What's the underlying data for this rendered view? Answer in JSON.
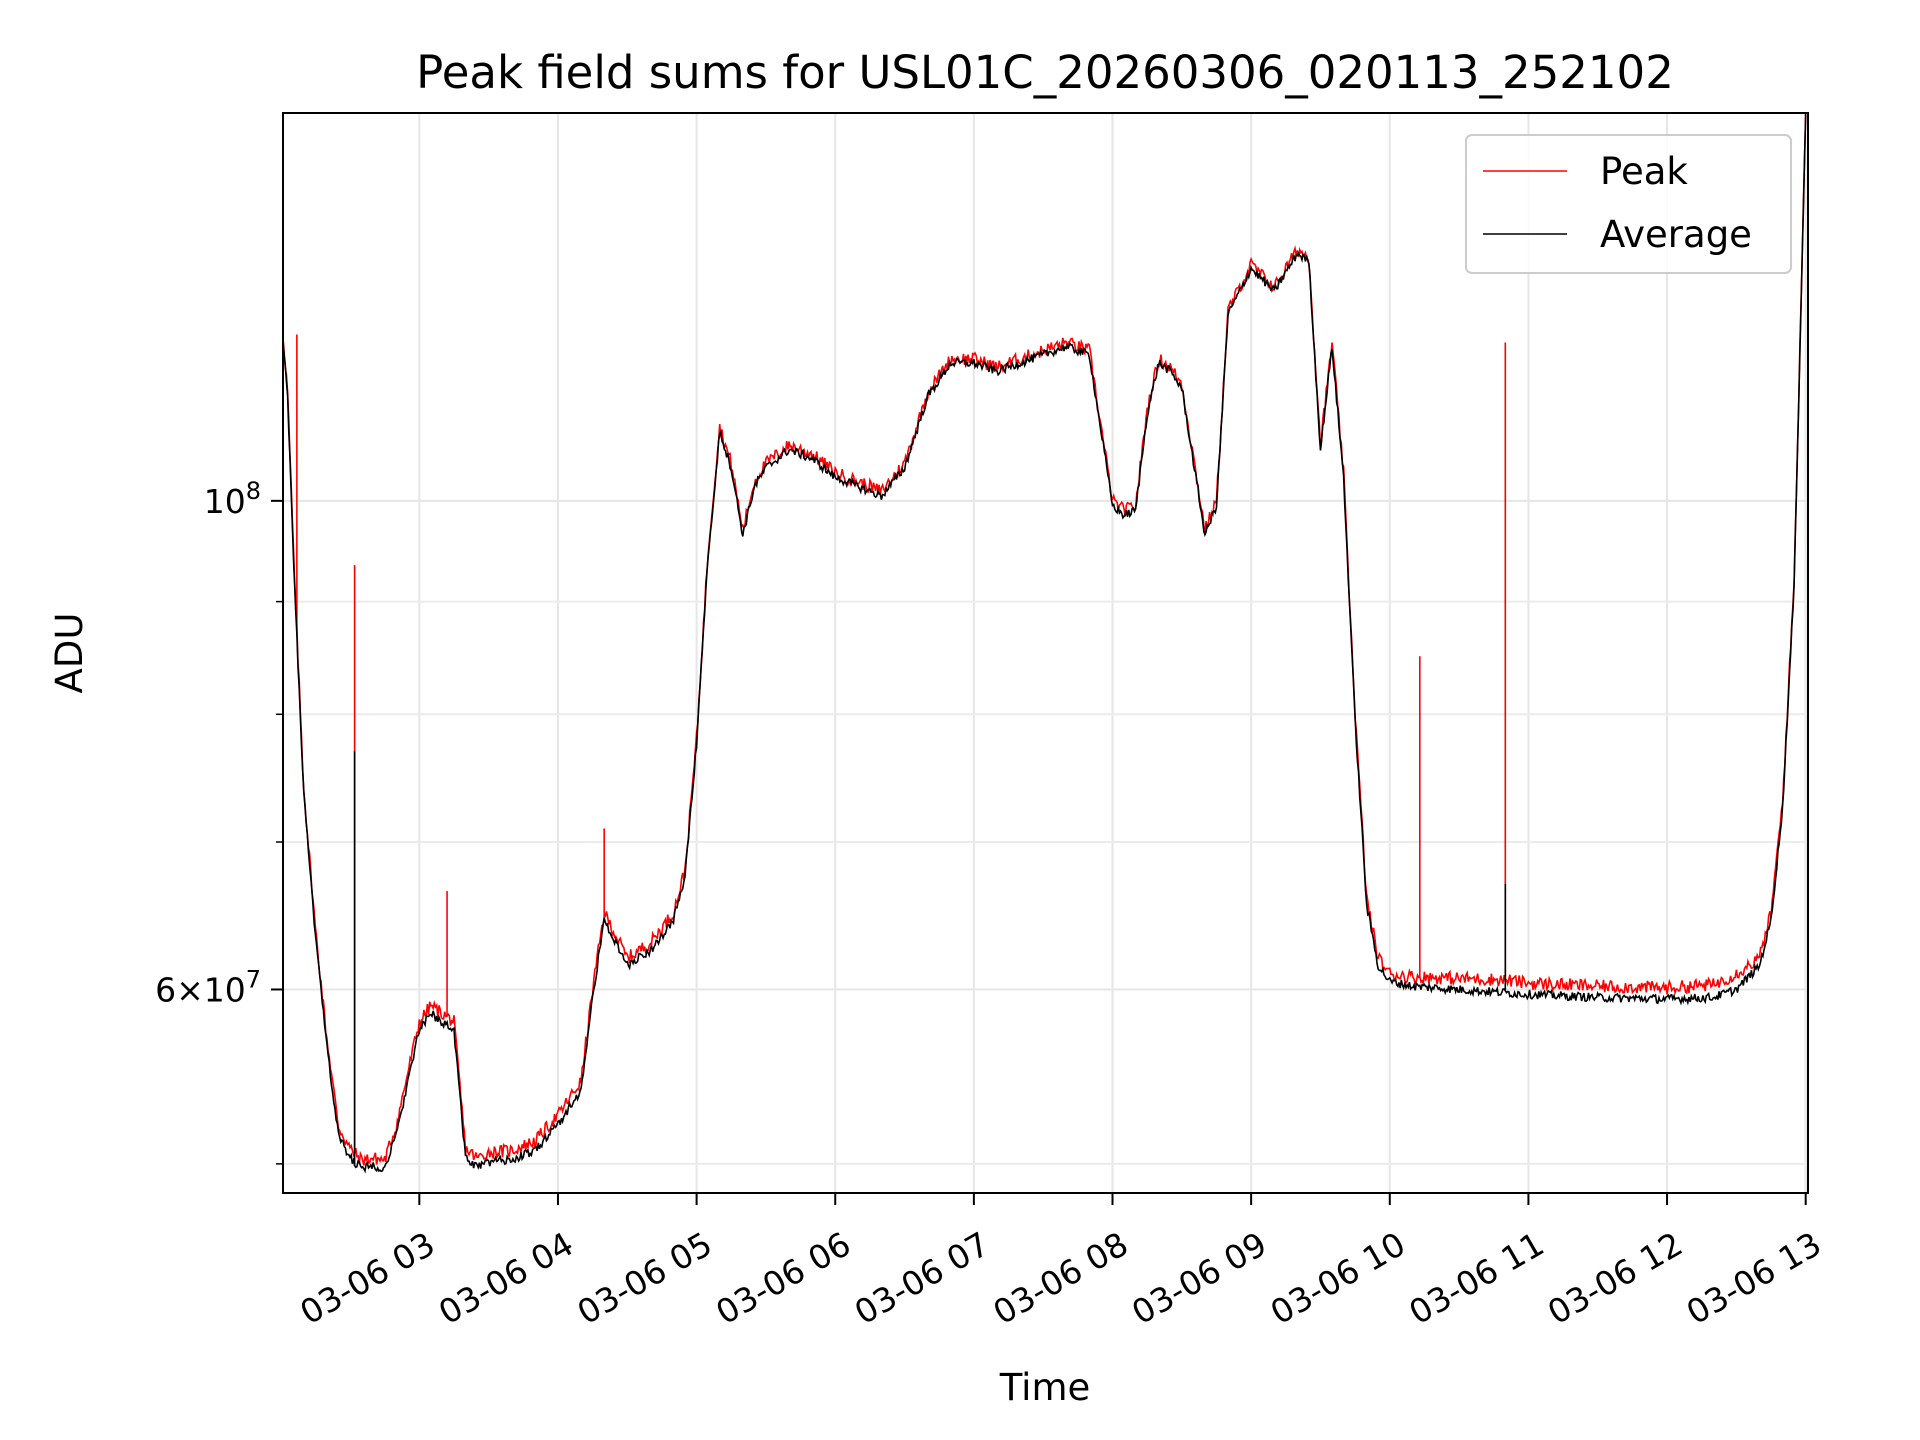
{
  "chart_data": {
    "type": "line",
    "title": "Peak field sums for USL01C_20260306_020113_252102",
    "xlabel": "Time",
    "ylabel": "ADU",
    "y_scale": "log",
    "grid": true,
    "legend_position": "top-right",
    "xlim": [
      "03-06 02:01",
      "03-06 13:01"
    ],
    "ylim": [
      48500000,
      150000000
    ],
    "x_ticks": [
      "03-06 03",
      "03-06 04",
      "03-06 05",
      "03-06 06",
      "03-06 07",
      "03-06 08",
      "03-06 09",
      "03-06 10",
      "03-06 11",
      "03-06 12",
      "03-06 13"
    ],
    "y_ticks": [
      "10^8",
      "6×10^7"
    ],
    "series": [
      {
        "name": "Peak",
        "color": "#ff0000",
        "x": [
          "03-06 02:01",
          "03-06 02:03",
          "03-06 02:06",
          "03-06 02:10",
          "03-06 02:15",
          "03-06 02:20",
          "03-06 02:25",
          "03-06 02:30",
          "03-06 02:35",
          "03-06 02:40",
          "03-06 02:45",
          "03-06 02:50",
          "03-06 02:55",
          "03-06 03:00",
          "03-06 03:05",
          "03-06 03:10",
          "03-06 03:15",
          "03-06 03:20",
          "03-06 03:25",
          "03-06 03:30",
          "03-06 03:40",
          "03-06 03:50",
          "03-06 04:00",
          "03-06 04:10",
          "03-06 04:15",
          "03-06 04:20",
          "03-06 04:25",
          "03-06 04:30",
          "03-06 04:40",
          "03-06 04:50",
          "03-06 04:55",
          "03-06 05:00",
          "03-06 05:05",
          "03-06 05:10",
          "03-06 05:15",
          "03-06 05:20",
          "03-06 05:25",
          "03-06 05:30",
          "03-06 05:40",
          "03-06 05:50",
          "03-06 06:00",
          "03-06 06:10",
          "03-06 06:20",
          "03-06 06:30",
          "03-06 06:40",
          "03-06 06:50",
          "03-06 07:00",
          "03-06 07:10",
          "03-06 07:20",
          "03-06 07:30",
          "03-06 07:40",
          "03-06 07:50",
          "03-06 08:00",
          "03-06 08:05",
          "03-06 08:10",
          "03-06 08:15",
          "03-06 08:20",
          "03-06 08:25",
          "03-06 08:30",
          "03-06 08:40",
          "03-06 08:45",
          "03-06 08:50",
          "03-06 09:00",
          "03-06 09:10",
          "03-06 09:20",
          "03-06 09:25",
          "03-06 09:30",
          "03-06 09:35",
          "03-06 09:40",
          "03-06 09:45",
          "03-06 09:50",
          "03-06 09:55",
          "03-06 10:00",
          "03-06 10:10",
          "03-06 10:30",
          "03-06 10:50",
          "03-06 11:00",
          "03-06 11:30",
          "03-06 12:00",
          "03-06 12:20",
          "03-06 12:30",
          "03-06 12:40",
          "03-06 12:45",
          "03-06 12:50",
          "03-06 12:55",
          "03-06 13:00"
        ],
        "values": [
          119000000,
          112000000,
          92000000,
          74000000,
          64000000,
          57000000,
          52000000,
          50800000,
          50200000,
          50300000,
          50200000,
          52000000,
          55000000,
          58000000,
          59000000,
          58500000,
          58000000,
          50800000,
          50300000,
          50600000,
          50700000,
          51200000,
          52600000,
          54500000,
          60000000,
          65000000,
          63500000,
          62000000,
          63000000,
          65000000,
          68000000,
          78000000,
          95000000,
          108000000,
          104000000,
          97000000,
          102000000,
          104000000,
          106000000,
          105000000,
          103000000,
          102000000,
          101000000,
          104000000,
          112000000,
          116000000,
          116000000,
          115000000,
          116000000,
          117000000,
          118000000,
          117000000,
          100000000,
          99000000,
          99500000,
          110000000,
          116000000,
          115000000,
          113000000,
          97000000,
          100000000,
          122000000,
          128000000,
          125000000,
          130000000,
          129000000,
          106000000,
          118000000,
          103000000,
          80000000,
          66000000,
          62000000,
          61000000,
          60800000,
          60700000,
          60600000,
          60400000,
          60200000,
          60100000,
          60300000,
          61000000,
          62000000,
          65000000,
          73000000,
          92000000,
          150000000
        ],
        "spikes": [
          {
            "x": "03-06 02:07",
            "value": 119000000
          },
          {
            "x": "03-06 02:32",
            "value": 93500000
          },
          {
            "x": "03-06 03:12",
            "value": 66500000
          },
          {
            "x": "03-06 04:20",
            "value": 71000000
          },
          {
            "x": "03-06 10:13",
            "value": 85000000
          },
          {
            "x": "03-06 10:50",
            "value": 118000000
          }
        ]
      },
      {
        "name": "Average",
        "color": "#000000",
        "x": [
          "03-06 02:01",
          "03-06 02:03",
          "03-06 02:06",
          "03-06 02:10",
          "03-06 02:15",
          "03-06 02:20",
          "03-06 02:25",
          "03-06 02:30",
          "03-06 02:35",
          "03-06 02:40",
          "03-06 02:45",
          "03-06 02:50",
          "03-06 02:55",
          "03-06 03:00",
          "03-06 03:05",
          "03-06 03:10",
          "03-06 03:15",
          "03-06 03:20",
          "03-06 03:25",
          "03-06 03:30",
          "03-06 03:40",
          "03-06 03:50",
          "03-06 04:00",
          "03-06 04:10",
          "03-06 04:15",
          "03-06 04:20",
          "03-06 04:25",
          "03-06 04:30",
          "03-06 04:40",
          "03-06 04:50",
          "03-06 04:55",
          "03-06 05:00",
          "03-06 05:05",
          "03-06 05:10",
          "03-06 05:15",
          "03-06 05:20",
          "03-06 05:25",
          "03-06 05:30",
          "03-06 05:40",
          "03-06 05:50",
          "03-06 06:00",
          "03-06 06:10",
          "03-06 06:20",
          "03-06 06:30",
          "03-06 06:40",
          "03-06 06:50",
          "03-06 07:00",
          "03-06 07:10",
          "03-06 07:20",
          "03-06 07:30",
          "03-06 07:40",
          "03-06 07:50",
          "03-06 08:00",
          "03-06 08:05",
          "03-06 08:10",
          "03-06 08:15",
          "03-06 08:20",
          "03-06 08:25",
          "03-06 08:30",
          "03-06 08:40",
          "03-06 08:45",
          "03-06 08:50",
          "03-06 09:00",
          "03-06 09:10",
          "03-06 09:20",
          "03-06 09:25",
          "03-06 09:30",
          "03-06 09:35",
          "03-06 09:40",
          "03-06 09:45",
          "03-06 09:50",
          "03-06 09:55",
          "03-06 10:00",
          "03-06 10:10",
          "03-06 10:30",
          "03-06 10:50",
          "03-06 11:00",
          "03-06 11:30",
          "03-06 12:00",
          "03-06 12:20",
          "03-06 12:30",
          "03-06 12:40",
          "03-06 12:45",
          "03-06 12:50",
          "03-06 12:55",
          "03-06 13:00"
        ],
        "values": [
          118500000,
          111500000,
          91500000,
          73500000,
          63500000,
          56500000,
          51500000,
          50300000,
          49800000,
          49900000,
          49800000,
          51500000,
          54500000,
          57500000,
          58500000,
          58000000,
          57500000,
          50300000,
          49800000,
          50100000,
          50200000,
          50700000,
          52100000,
          54000000,
          59500000,
          64500000,
          63000000,
          61500000,
          62500000,
          64500000,
          67500000,
          77500000,
          94500000,
          107500000,
          103500000,
          96500000,
          101500000,
          103500000,
          105500000,
          104500000,
          102500000,
          101500000,
          100500000,
          103500000,
          111500000,
          115500000,
          115500000,
          114500000,
          115500000,
          116500000,
          117500000,
          116500000,
          99500000,
          98500000,
          99000000,
          109500000,
          115500000,
          114500000,
          112500000,
          96500000,
          99500000,
          121500000,
          127500000,
          124500000,
          129500000,
          128500000,
          105500000,
          117500000,
          102500000,
          79500000,
          65500000,
          61500000,
          60500000,
          60200000,
          60000000,
          59800000,
          59700000,
          59500000,
          59400000,
          59500000,
          60000000,
          61500000,
          64500000,
          72500000,
          91500000,
          150000000
        ],
        "spikes": [
          {
            "x": "03-06 02:32",
            "value": 77000000
          },
          {
            "x": "03-06 10:50",
            "value": 67000000
          }
        ]
      }
    ]
  }
}
